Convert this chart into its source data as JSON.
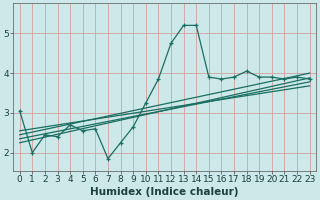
{
  "bg_color": "#cce8e8",
  "grid_color": "#d4a0a0",
  "line_color": "#1a6e62",
  "xlabel": "Humidex (Indice chaleur)",
  "xlabel_fontsize": 7.5,
  "tick_fontsize": 6.5,
  "xlim": [
    -0.5,
    23.5
  ],
  "ylim": [
    1.55,
    5.75
  ],
  "yticks": [
    2,
    3,
    4,
    5
  ],
  "xticks": [
    0,
    1,
    2,
    3,
    4,
    5,
    6,
    7,
    8,
    9,
    10,
    11,
    12,
    13,
    14,
    15,
    16,
    17,
    18,
    19,
    20,
    21,
    22,
    23
  ],
  "main_x": [
    0,
    1,
    2,
    3,
    4,
    5,
    6,
    7,
    8,
    9,
    10,
    11,
    12,
    13,
    14,
    15,
    16,
    17,
    18,
    19,
    20,
    21,
    22,
    23
  ],
  "main_y": [
    3.05,
    2.0,
    2.45,
    2.4,
    2.7,
    2.55,
    2.6,
    1.85,
    2.25,
    2.65,
    3.25,
    3.85,
    4.75,
    5.2,
    5.2,
    3.9,
    3.85,
    3.9,
    4.05,
    3.9,
    3.9,
    3.85,
    3.9,
    3.85
  ],
  "trend1_x": [
    0,
    23
  ],
  "trend1_y": [
    2.25,
    3.88
  ],
  "trend2_x": [
    0,
    23
  ],
  "trend2_y": [
    2.35,
    3.78
  ],
  "trend3_x": [
    0,
    23
  ],
  "trend3_y": [
    2.45,
    4.0
  ],
  "trend4_x": [
    0,
    23
  ],
  "trend4_y": [
    2.55,
    3.68
  ]
}
